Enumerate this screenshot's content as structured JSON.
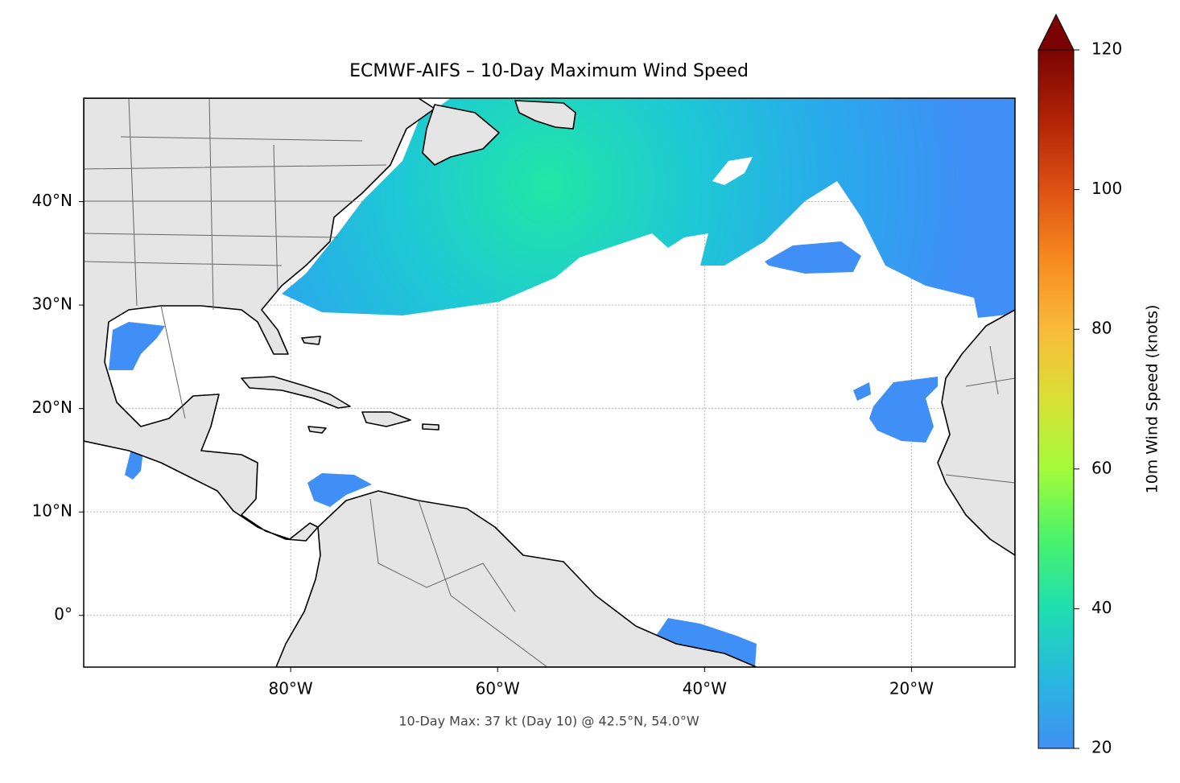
{
  "chart_data": {
    "type": "map",
    "title": "ECMWF-AIFS – 10-Day Maximum Wind Speed",
    "annotation": "10-Day Max: 37 kt (Day 10) @ 42.5°N, 54.0°W",
    "xlim": [
      -100,
      -10
    ],
    "ylim": [
      -5,
      50
    ],
    "xticks": [
      {
        "value": -80,
        "label": "80°W"
      },
      {
        "value": -60,
        "label": "60°W"
      },
      {
        "value": -40,
        "label": "40°W"
      },
      {
        "value": -20,
        "label": "20°W"
      }
    ],
    "yticks": [
      {
        "value": 0,
        "label": "0°"
      },
      {
        "value": 10,
        "label": "10°N"
      },
      {
        "value": 20,
        "label": "20°N"
      },
      {
        "value": 30,
        "label": "30°N"
      },
      {
        "value": 40,
        "label": "40°N"
      }
    ],
    "grid": true,
    "colorbar": {
      "label": "10m Wind Speed (knots)",
      "lim": [
        20,
        120
      ],
      "ticks": [
        20,
        40,
        60,
        80,
        100,
        120
      ]
    }
  }
}
